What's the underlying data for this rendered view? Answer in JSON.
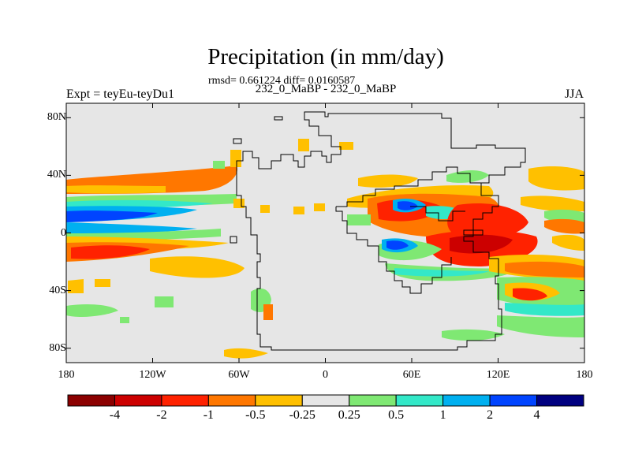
{
  "chart_data": {
    "type": "heatmap",
    "title": "Precipitation (in mm/day)",
    "stats_line": "rmsd= 0.661224 diff= 0.0160587",
    "subtitle": "232_0_MaBP - 232_0_MaBP",
    "left_label": "Expt = teyEu-teyDu1",
    "right_label": "JJA",
    "x_axis": {
      "range": [
        -180,
        180
      ],
      "ticks": [
        "180",
        "120W",
        "60W",
        "0",
        "60E",
        "120E",
        "180"
      ]
    },
    "y_axis": {
      "range": [
        -90,
        90
      ],
      "ticks": [
        "80N",
        "40N",
        "0",
        "40S",
        "80S"
      ]
    },
    "colorbar": {
      "levels": [
        "-4",
        "-2",
        "-1",
        "-0.5",
        "-0.25",
        "0.25",
        "0.5",
        "1",
        "2",
        "4"
      ],
      "colors": [
        "#8b0000",
        "#cc0000",
        "#ff2200",
        "#ff7700",
        "#ffc000",
        "#e6e6e6",
        "#7fe873",
        "#33e8c8",
        "#00b0f0",
        "#0044ff",
        "#000080"
      ]
    },
    "background_color": "#e6e6e6"
  }
}
